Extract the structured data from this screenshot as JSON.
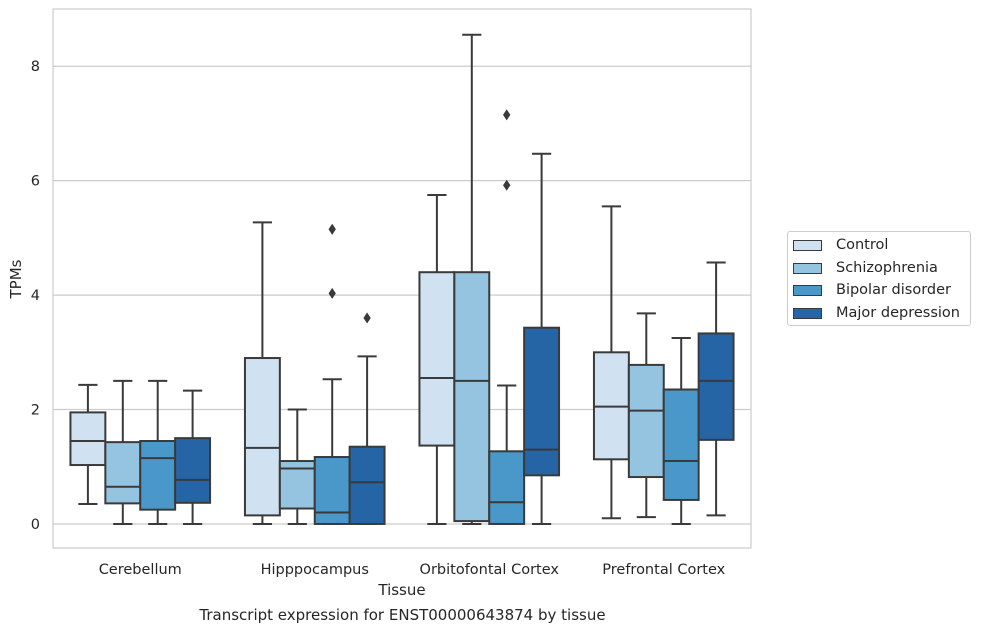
{
  "caption": "Transcript expression for ENST00000643874 by tissue",
  "chart_data": {
    "type": "boxplot",
    "title": "",
    "xlabel": "Tissue",
    "ylabel": "TPMs",
    "ylim": [
      -0.42,
      9.0
    ],
    "yticks": [
      0,
      2,
      4,
      6,
      8
    ],
    "grid": "horizontal",
    "legend_position": "right",
    "categories": [
      "Cerebellum",
      "Hipppocampus",
      "Orbitofontal Cortex",
      "Prefrontal Cortex"
    ],
    "series": [
      {
        "name": "Control",
        "color": "#d0e1f2",
        "boxes": [
          {
            "whislo": 0.35,
            "q1": 1.03,
            "med": 1.45,
            "q3": 1.95,
            "whishi": 2.43,
            "fliers": []
          },
          {
            "whislo": 0.0,
            "q1": 0.15,
            "med": 1.33,
            "q3": 2.9,
            "whishi": 5.27,
            "fliers": []
          },
          {
            "whislo": 0.0,
            "q1": 1.37,
            "med": 2.55,
            "q3": 4.4,
            "whishi": 5.75,
            "fliers": []
          },
          {
            "whislo": 0.1,
            "q1": 1.13,
            "med": 2.05,
            "q3": 3.0,
            "whishi": 5.55,
            "fliers": []
          }
        ]
      },
      {
        "name": "Schizophrenia",
        "color": "#94c4df",
        "boxes": [
          {
            "whislo": 0.0,
            "q1": 0.36,
            "med": 0.65,
            "q3": 1.43,
            "whishi": 2.5,
            "fliers": []
          },
          {
            "whislo": 0.0,
            "q1": 0.27,
            "med": 0.97,
            "q3": 1.1,
            "whishi": 2.0,
            "fliers": []
          },
          {
            "whislo": 0.0,
            "q1": 0.05,
            "med": 2.5,
            "q3": 4.4,
            "whishi": 8.55,
            "fliers": []
          },
          {
            "whislo": 0.12,
            "q1": 0.82,
            "med": 1.98,
            "q3": 2.78,
            "whishi": 3.68,
            "fliers": []
          }
        ]
      },
      {
        "name": "Bipolar disorder",
        "color": "#4a98c9",
        "boxes": [
          {
            "whislo": 0.0,
            "q1": 0.25,
            "med": 1.15,
            "q3": 1.45,
            "whishi": 2.5,
            "fliers": []
          },
          {
            "whislo": 0.0,
            "q1": 0.0,
            "med": 0.2,
            "q3": 1.17,
            "whishi": 2.53,
            "fliers": [
              4.03,
              5.15
            ]
          },
          {
            "whislo": 0.0,
            "q1": 0.0,
            "med": 0.38,
            "q3": 1.27,
            "whishi": 2.42,
            "fliers": [
              5.92,
              7.15
            ]
          },
          {
            "whislo": 0.0,
            "q1": 0.42,
            "med": 1.1,
            "q3": 2.35,
            "whishi": 3.25,
            "fliers": []
          }
        ]
      },
      {
        "name": "Major depression",
        "color": "#2565a6",
        "boxes": [
          {
            "whislo": 0.0,
            "q1": 0.37,
            "med": 0.77,
            "q3": 1.5,
            "whishi": 2.33,
            "fliers": []
          },
          {
            "whislo": 0.0,
            "q1": 0.0,
            "med": 0.73,
            "q3": 1.35,
            "whishi": 2.93,
            "fliers": [
              3.6
            ]
          },
          {
            "whislo": 0.0,
            "q1": 0.85,
            "med": 1.3,
            "q3": 3.43,
            "whishi": 6.47,
            "fliers": []
          },
          {
            "whislo": 0.15,
            "q1": 1.47,
            "med": 2.5,
            "q3": 3.33,
            "whishi": 4.57,
            "fliers": []
          }
        ]
      }
    ]
  }
}
